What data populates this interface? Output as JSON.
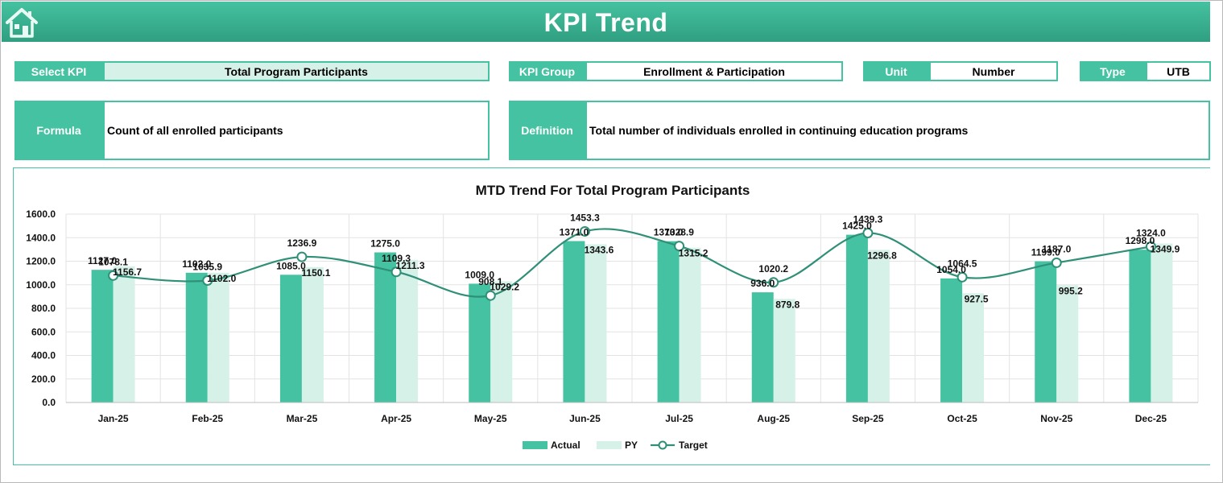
{
  "header": {
    "title": "KPI Trend",
    "home_icon": "home-icon"
  },
  "colors": {
    "accent": "#45c2a1",
    "dark": "#2f8f77",
    "light": "#d6f1e8"
  },
  "select_kpi": {
    "label": "Select KPI",
    "value": "Total Program Participants"
  },
  "kpi_group": {
    "label": "KPI Group",
    "value": "Enrollment & Participation"
  },
  "unit": {
    "label": "Unit",
    "value": "Number"
  },
  "type": {
    "label": "Type",
    "value": "UTB"
  },
  "formula": {
    "label": "Formula",
    "value": "Count of all enrolled participants"
  },
  "definition": {
    "label": "Definition",
    "value": "Total number of individuals enrolled in continuing education programs"
  },
  "chart_data": {
    "type": "bar",
    "title": "MTD Trend For Total Program Participants",
    "categories": [
      "Jan-25",
      "Feb-25",
      "Mar-25",
      "Apr-25",
      "May-25",
      "Jun-25",
      "Jul-25",
      "Aug-25",
      "Sep-25",
      "Oct-25",
      "Nov-25",
      "Dec-25"
    ],
    "series": [
      {
        "name": "Actual",
        "kind": "bar",
        "values": [
          1127.0,
          1102.0,
          1085.0,
          1275.0,
          1009.0,
          1371.0,
          1370.0,
          936.0,
          1425.0,
          1054.0,
          1199.0,
          1298.0
        ]
      },
      {
        "name": "PY",
        "kind": "bar",
        "values": [
          1156.7,
          1102.0,
          1150.1,
          1211.3,
          1029.2,
          1343.6,
          1315.2,
          879.8,
          1296.8,
          927.5,
          995.2,
          1349.9
        ]
      },
      {
        "name": "Target",
        "kind": "line",
        "values": [
          1078.1,
          1035.9,
          1236.9,
          1109.3,
          908.1,
          1453.3,
          1328.9,
          1020.2,
          1439.3,
          1064.5,
          1187.0,
          1324.0
        ]
      }
    ],
    "yticks": [
      "0.0",
      "200.0",
      "400.0",
      "600.0",
      "800.0",
      "1000.0",
      "1200.0",
      "1400.0",
      "1600.0"
    ],
    "ylim": [
      0,
      1600
    ],
    "grid": true,
    "legend": "bottom"
  }
}
